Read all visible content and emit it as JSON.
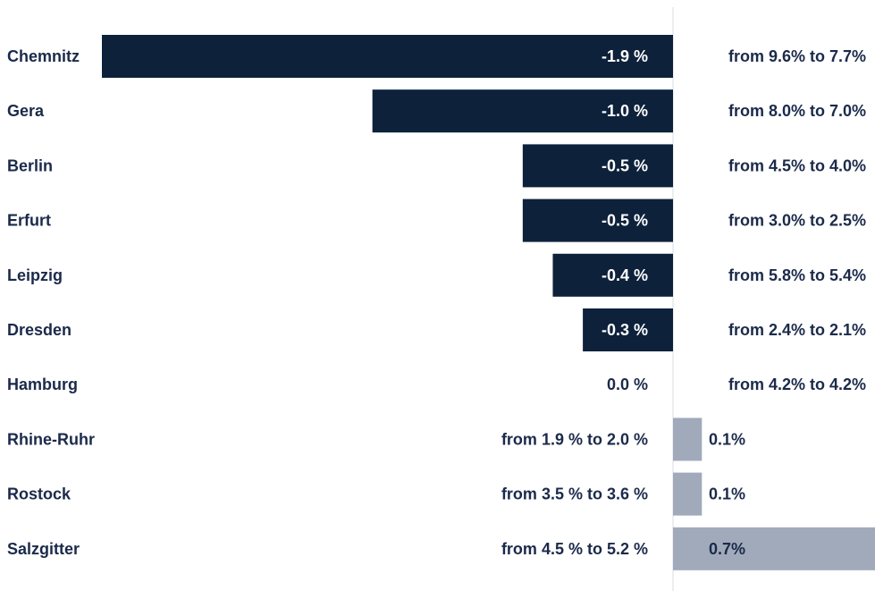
{
  "chart_data": {
    "type": "bar",
    "orientation": "horizontal",
    "categories": [
      "Chemnitz",
      "Gera",
      "Berlin",
      "Erfurt",
      "Leipzig",
      "Dresden",
      "Hamburg",
      "Rhine-Ruhr",
      "Rostock",
      "Salzgitter"
    ],
    "values": [
      -1.9,
      -1.0,
      -0.5,
      -0.5,
      -0.4,
      -0.3,
      0.0,
      0.1,
      0.1,
      0.7
    ],
    "value_labels": [
      "-1.9 %",
      "-1.0 %",
      "-0.5 %",
      "-0.5 %",
      "-0.4 %",
      "-0.3 %",
      "0.0 %",
      "0.1%",
      "0.1%",
      "0.7%"
    ],
    "range_labels": [
      "from 9.6% to 7.7%",
      "from 8.0% to 7.0%",
      "from 4.5% to 4.0%",
      "from 3.0% to 2.5%",
      "from 5.8% to 5.4%",
      "from 2.4% to 2.1%",
      "from 4.2% to 4.2%",
      "from 1.9 % to 2.0 %",
      "from 3.5 % to 3.6 %",
      "from 4.5 % to 5.2 %"
    ],
    "xlim": [
      -1.9,
      0.7
    ],
    "grid": false,
    "legend": "none",
    "colors": {
      "negative": "#0d213b",
      "positive": "#a1aabb",
      "negative_text": "#ffffff",
      "positive_text": "#1b2a4a",
      "text": "#1b2a4a",
      "zero_line": "#d9dde3"
    }
  }
}
